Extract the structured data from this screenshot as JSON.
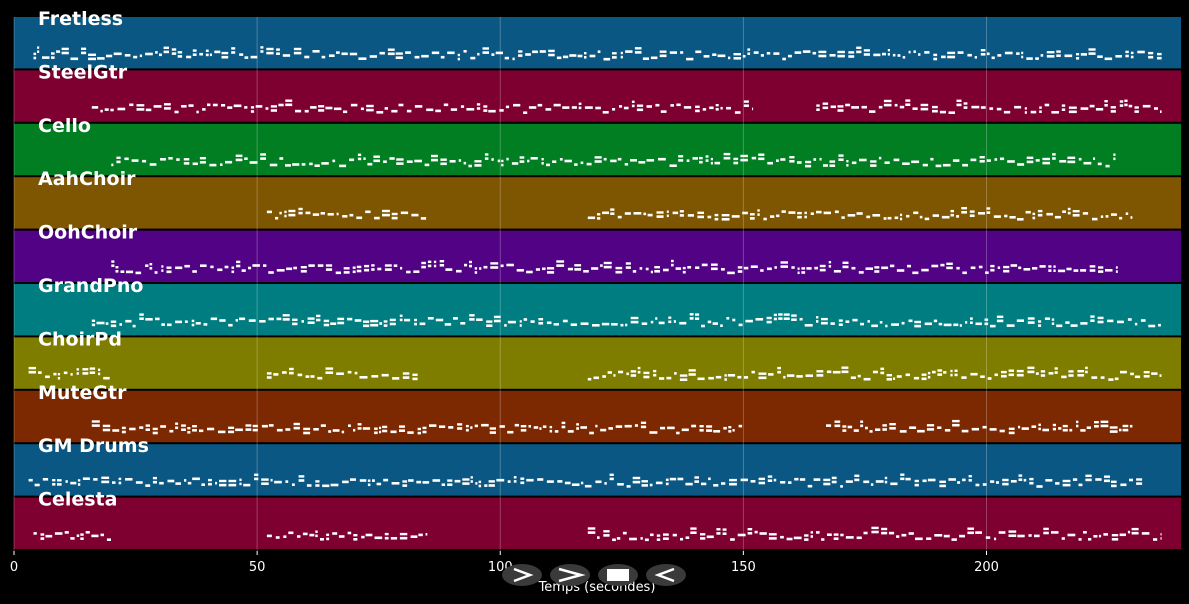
{
  "chart_data": {
    "type": "piano-roll",
    "xlabel": "Temps (secondes)",
    "xlim": [
      0,
      240
    ],
    "x_ticks": [
      0,
      50,
      100,
      150,
      200
    ],
    "grid": true,
    "tracks": [
      {
        "name": "Fretless",
        "color": "#0b5783",
        "active": [
          [
            4,
            236
          ]
        ]
      },
      {
        "name": "SteelGtr",
        "color": "#7d0030",
        "active": [
          [
            16,
            152
          ],
          [
            165,
            236
          ]
        ]
      },
      {
        "name": "Cello",
        "color": "#017d22",
        "active": [
          [
            20,
            227
          ]
        ]
      },
      {
        "name": "AahChoir",
        "color": "#7e5501",
        "active": [
          [
            52,
            85
          ],
          [
            118,
            230
          ]
        ]
      },
      {
        "name": "OohChoir",
        "color": "#520284",
        "active": [
          [
            20,
            227
          ]
        ]
      },
      {
        "name": "GrandPno",
        "color": "#007d80",
        "active": [
          [
            16,
            236
          ]
        ]
      },
      {
        "name": "ChoirPd",
        "color": "#7e7d00",
        "active": [
          [
            3,
            20
          ],
          [
            52,
            83
          ],
          [
            118,
            236
          ]
        ]
      },
      {
        "name": "MuteGtr",
        "color": "#7c2801",
        "active": [
          [
            16,
            150
          ],
          [
            167,
            230
          ]
        ]
      },
      {
        "name": "GM Drums",
        "color": "#0b5783",
        "active": [
          [
            3,
            232
          ]
        ]
      },
      {
        "name": "Celesta",
        "color": "#7d0030",
        "active": [
          [
            4,
            20
          ],
          [
            52,
            85
          ],
          [
            118,
            236
          ]
        ]
      }
    ]
  },
  "controls": [
    {
      "name": "play",
      "icon": "play-icon"
    },
    {
      "name": "forward",
      "icon": "forward-icon"
    },
    {
      "name": "stop",
      "icon": "stop-icon"
    },
    {
      "name": "rewind",
      "icon": "rewind-icon"
    }
  ],
  "colors": {
    "background": "#000000",
    "note": "#ffffff",
    "control": "#3a3a3a"
  }
}
